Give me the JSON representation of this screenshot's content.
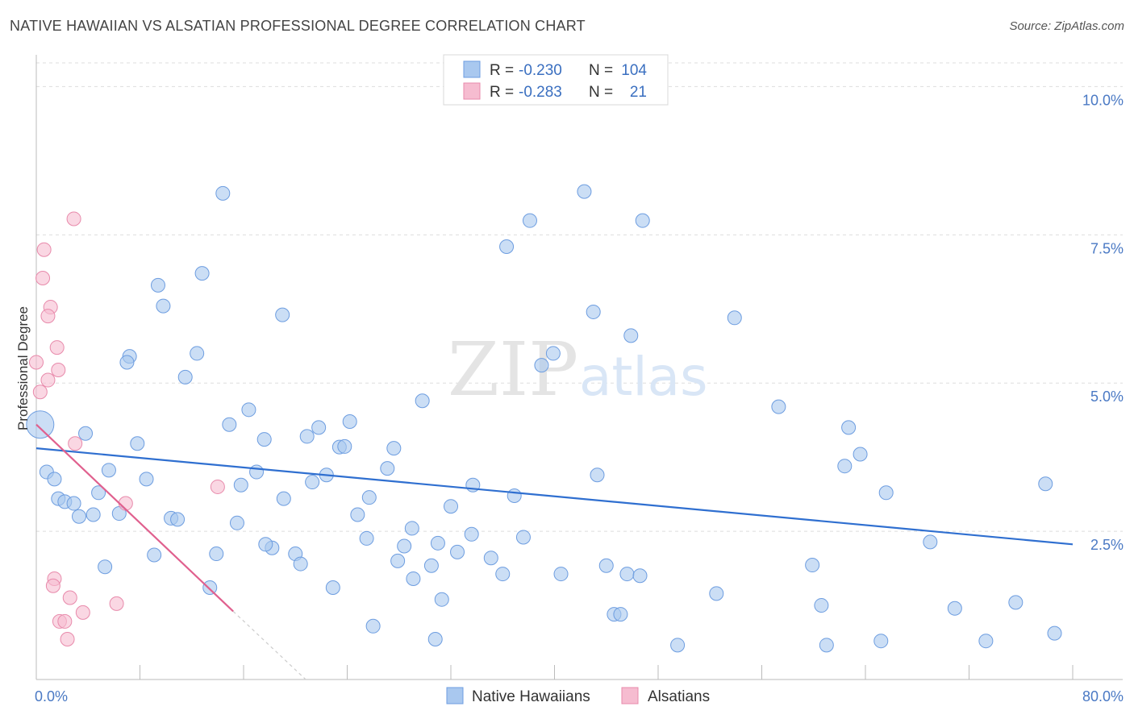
{
  "title": "NATIVE HAWAIIAN VS ALSATIAN PROFESSIONAL DEGREE CORRELATION CHART",
  "source": "Source: ZipAtlas.com",
  "watermark": {
    "zip": "ZIP",
    "atlas": "atlas"
  },
  "colors": {
    "blue_fill": "#a9c8ef",
    "blue_stroke": "#6d9de0",
    "blue_line": "#2f6fd0",
    "pink_fill": "#f6bcd0",
    "pink_stroke": "#e88aab",
    "pink_line": "#e0608e",
    "axis_text": "#4a79c4",
    "grid": "#dddddd"
  },
  "legend": {
    "rows": [
      {
        "r_label": "R =",
        "r_value": "-0.230",
        "n_label": "N =",
        "n_value": "104"
      },
      {
        "r_label": "R =",
        "r_value": "-0.283",
        "n_label": "N =",
        "n_value": "21"
      }
    ]
  },
  "bottom_legend": [
    "Native Hawaiians",
    "Alsatians"
  ],
  "chart_data": {
    "type": "scatter",
    "ylabel": "Professional Degree",
    "xlim": [
      0,
      80
    ],
    "ylim": [
      0,
      10.4
    ],
    "x_tick_labels": [
      "0.0%",
      "80.0%"
    ],
    "y_ticks": [
      2.5,
      5.0,
      7.5,
      10.0
    ],
    "y_tick_labels": [
      "2.5%",
      "5.0%",
      "7.5%",
      "10.0%"
    ],
    "grid": true,
    "legend_position": "top-center",
    "series": [
      {
        "name": "Native Hawaiians",
        "R": -0.23,
        "N": 104,
        "trend": {
          "x": [
            0,
            80
          ],
          "y": [
            3.9,
            2.28
          ]
        },
        "points": [
          [
            14.4,
            8.2
          ],
          [
            42.3,
            8.23
          ],
          [
            38.1,
            7.74
          ],
          [
            46.8,
            7.74
          ],
          [
            36.3,
            7.3
          ],
          [
            9.4,
            6.65
          ],
          [
            12.8,
            6.85
          ],
          [
            9.8,
            6.3
          ],
          [
            19.0,
            6.15
          ],
          [
            43.0,
            6.2
          ],
          [
            53.9,
            6.1
          ],
          [
            45.9,
            5.8
          ],
          [
            7.2,
            5.45
          ],
          [
            12.4,
            5.5
          ],
          [
            7.0,
            5.35
          ],
          [
            39.9,
            5.5
          ],
          [
            39.0,
            5.3
          ],
          [
            11.5,
            5.1
          ],
          [
            29.8,
            4.7
          ],
          [
            57.3,
            4.6
          ],
          [
            16.4,
            4.55
          ],
          [
            14.9,
            4.3
          ],
          [
            24.2,
            4.35
          ],
          [
            21.8,
            4.25
          ],
          [
            62.7,
            4.25
          ],
          [
            3.8,
            4.15
          ],
          [
            17.6,
            4.05
          ],
          [
            20.9,
            4.1
          ],
          [
            7.8,
            3.98
          ],
          [
            23.4,
            3.92
          ],
          [
            23.8,
            3.93
          ],
          [
            27.6,
            3.9
          ],
          [
            63.6,
            3.8
          ],
          [
            0.8,
            3.5
          ],
          [
            5.6,
            3.53
          ],
          [
            17.0,
            3.5
          ],
          [
            27.1,
            3.56
          ],
          [
            62.4,
            3.6
          ],
          [
            1.4,
            3.38
          ],
          [
            8.5,
            3.38
          ],
          [
            22.4,
            3.45
          ],
          [
            21.3,
            3.33
          ],
          [
            15.8,
            3.28
          ],
          [
            33.7,
            3.28
          ],
          [
            43.3,
            3.45
          ],
          [
            77.9,
            3.3
          ],
          [
            4.8,
            3.15
          ],
          [
            65.6,
            3.15
          ],
          [
            1.7,
            3.05
          ],
          [
            2.2,
            3.0
          ],
          [
            2.9,
            2.97
          ],
          [
            19.1,
            3.05
          ],
          [
            25.7,
            3.07
          ],
          [
            36.9,
            3.1
          ],
          [
            32.0,
            2.92
          ],
          [
            3.3,
            2.75
          ],
          [
            4.4,
            2.78
          ],
          [
            6.4,
            2.8
          ],
          [
            10.4,
            2.72
          ],
          [
            10.9,
            2.7
          ],
          [
            15.5,
            2.64
          ],
          [
            24.8,
            2.78
          ],
          [
            29.0,
            2.55
          ],
          [
            33.6,
            2.45
          ],
          [
            37.6,
            2.4
          ],
          [
            25.5,
            2.38
          ],
          [
            18.2,
            2.22
          ],
          [
            17.7,
            2.28
          ],
          [
            28.4,
            2.25
          ],
          [
            31.0,
            2.3
          ],
          [
            69.0,
            2.32
          ],
          [
            9.1,
            2.1
          ],
          [
            13.9,
            2.12
          ],
          [
            20.0,
            2.12
          ],
          [
            32.5,
            2.15
          ],
          [
            35.1,
            2.05
          ],
          [
            5.3,
            1.9
          ],
          [
            20.4,
            1.95
          ],
          [
            27.9,
            2.0
          ],
          [
            30.5,
            1.92
          ],
          [
            44.0,
            1.92
          ],
          [
            59.9,
            1.93
          ],
          [
            29.1,
            1.7
          ],
          [
            36.0,
            1.78
          ],
          [
            40.5,
            1.78
          ],
          [
            45.6,
            1.78
          ],
          [
            46.6,
            1.75
          ],
          [
            13.4,
            1.55
          ],
          [
            22.9,
            1.55
          ],
          [
            31.3,
            1.35
          ],
          [
            52.5,
            1.45
          ],
          [
            60.6,
            1.25
          ],
          [
            70.9,
            1.2
          ],
          [
            75.6,
            1.3
          ],
          [
            44.6,
            1.1
          ],
          [
            45.1,
            1.1
          ],
          [
            26.0,
            0.9
          ],
          [
            30.8,
            0.68
          ],
          [
            49.5,
            0.58
          ],
          [
            61.0,
            0.58
          ],
          [
            65.2,
            0.65
          ],
          [
            73.3,
            0.65
          ],
          [
            78.6,
            0.78
          ],
          [
            0.3,
            4.3
          ]
        ]
      },
      {
        "name": "Alsatians",
        "R": -0.283,
        "N": 21,
        "trend": {
          "x": [
            0,
            15.2
          ],
          "y": [
            4.3,
            1.15
          ]
        },
        "trend_dashed": {
          "x": [
            15.2,
            20.8
          ],
          "y": [
            1.15,
            0.0
          ]
        },
        "points": [
          [
            2.9,
            7.77
          ],
          [
            0.6,
            7.25
          ],
          [
            0.5,
            6.77
          ],
          [
            1.1,
            6.28
          ],
          [
            0.9,
            6.13
          ],
          [
            1.6,
            5.6
          ],
          [
            1.7,
            5.22
          ],
          [
            0.0,
            5.35
          ],
          [
            0.9,
            5.05
          ],
          [
            0.3,
            4.85
          ],
          [
            3.0,
            3.98
          ],
          [
            14.0,
            3.25
          ],
          [
            6.9,
            2.97
          ],
          [
            1.4,
            1.7
          ],
          [
            1.3,
            1.58
          ],
          [
            2.6,
            1.38
          ],
          [
            6.2,
            1.28
          ],
          [
            3.6,
            1.13
          ],
          [
            1.8,
            0.98
          ],
          [
            2.2,
            0.98
          ],
          [
            2.4,
            0.68
          ]
        ]
      }
    ]
  }
}
